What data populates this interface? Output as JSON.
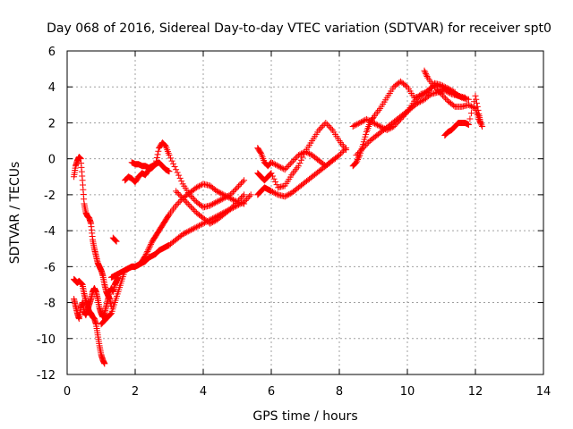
{
  "chart_data": {
    "type": "scatter",
    "title": "Day 068 of 2016, Sidereal Day-to-day VTEC variation (SDTVAR) for receiver spt0",
    "xlabel": "GPS time / hours",
    "ylabel": "SDTVAR / TECUs",
    "xlim": [
      0,
      14
    ],
    "ylim": [
      -12,
      6
    ],
    "xticks": [
      0,
      2,
      4,
      6,
      8,
      10,
      12,
      14
    ],
    "yticks": [
      -12,
      -10,
      -8,
      -6,
      -4,
      -2,
      0,
      2,
      4,
      6
    ],
    "grid": true,
    "legend": "none",
    "marker": "plus",
    "color": "#ff0000",
    "series": [
      {
        "x": [
          0.2,
          0.25,
          0.3,
          0.35,
          0.4,
          0.45,
          0.5,
          0.55,
          0.6,
          0.65,
          0.7,
          0.75,
          0.8,
          0.85,
          0.9,
          0.95,
          1.0,
          1.05,
          1.1,
          1.15,
          1.2,
          1.25,
          1.3
        ],
        "y": [
          -1.0,
          -0.4,
          -0.1,
          0.1,
          0.0,
          -1.2,
          -2.5,
          -3.0,
          -3.2,
          -3.3,
          -3.6,
          -4.5,
          -5.0,
          -5.4,
          -5.8,
          -6.0,
          -6.2,
          -6.5,
          -7.0,
          -7.4,
          -7.6,
          -7.8,
          -8.2
        ]
      },
      {
        "x": [
          0.2,
          0.25,
          0.3,
          0.35,
          0.4,
          0.45,
          0.5,
          0.55,
          0.6,
          0.65,
          0.7,
          0.75,
          0.8,
          0.85,
          0.9,
          0.95,
          1.0,
          1.05,
          1.1
        ],
        "y": [
          -6.7,
          -6.8,
          -6.9,
          -6.8,
          -6.9,
          -7.0,
          -7.5,
          -7.9,
          -8.2,
          -8.5,
          -8.6,
          -8.8,
          -8.9,
          -9.2,
          -9.8,
          -10.4,
          -10.9,
          -11.2,
          -11.4
        ]
      },
      {
        "x": [
          0.2,
          0.25,
          0.3,
          0.35,
          0.4,
          0.45,
          0.5,
          0.55,
          0.6,
          0.65,
          0.7,
          0.75,
          0.8,
          0.85,
          0.9,
          0.95,
          1.0,
          1.05,
          1.1,
          1.15,
          1.2,
          1.25,
          1.3,
          1.35,
          1.4,
          1.45,
          1.5
        ],
        "y": [
          -7.8,
          -8.2,
          -8.6,
          -8.9,
          -8.3,
          -8.0,
          -8.5,
          -8.7,
          -8.4,
          -8.1,
          -7.8,
          -7.4,
          -7.2,
          -7.4,
          -7.8,
          -8.3,
          -8.6,
          -8.8,
          -8.6,
          -8.2,
          -7.8,
          -7.4,
          -7.2,
          -7.4,
          -7.0,
          -6.8,
          -6.6
        ]
      },
      {
        "x": [
          1.0,
          1.1,
          1.2,
          1.3,
          1.4,
          1.5,
          1.6,
          1.7,
          1.8,
          1.9,
          2.0,
          2.1,
          2.2,
          2.3,
          2.4,
          2.5,
          2.6,
          2.7,
          2.8,
          2.9,
          3.0,
          3.2,
          3.4,
          3.6,
          3.8,
          4.0,
          4.2,
          4.4,
          4.6,
          4.8,
          5.0,
          5.2
        ],
        "y": [
          -9.2,
          -9.0,
          -8.8,
          -8.6,
          -8.0,
          -7.4,
          -6.8,
          -6.2,
          -6.1,
          -6.0,
          -6.0,
          -5.9,
          -5.7,
          -5.4,
          -5.0,
          -4.6,
          -4.3,
          -4.0,
          -3.7,
          -3.4,
          -3.1,
          -2.6,
          -2.2,
          -1.9,
          -1.6,
          -1.4,
          -1.5,
          -1.8,
          -2.0,
          -2.2,
          -2.4,
          -2.5
        ]
      },
      {
        "x": [
          1.3,
          1.4,
          1.5,
          1.6,
          1.7,
          1.8,
          1.9,
          2.0,
          2.1,
          2.2,
          2.3,
          2.4,
          2.5,
          2.6,
          2.7,
          2.8,
          2.9,
          3.0,
          3.2,
          3.4,
          3.6,
          3.8,
          4.0,
          4.2,
          4.4,
          4.6,
          4.8,
          5.0,
          5.2,
          5.4
        ],
        "y": [
          -6.6,
          -6.5,
          -6.4,
          -6.3,
          -6.2,
          -6.1,
          -6.0,
          -6.0,
          -5.9,
          -5.8,
          -5.7,
          -5.5,
          -5.4,
          -5.3,
          -5.1,
          -5.0,
          -4.9,
          -4.8,
          -4.5,
          -4.2,
          -4.0,
          -3.8,
          -3.6,
          -3.4,
          -3.2,
          -3.0,
          -2.8,
          -2.6,
          -2.4,
          -2.0
        ]
      },
      {
        "x": [
          1.7,
          1.8,
          1.9,
          2.0,
          2.1,
          2.2,
          2.3,
          2.4,
          2.5,
          2.6,
          2.7,
          2.8,
          2.9,
          3.0
        ],
        "y": [
          -1.2,
          -1.0,
          -1.1,
          -1.3,
          -1.0,
          -0.8,
          -0.9,
          -0.6,
          -0.5,
          -0.3,
          -0.2,
          -0.4,
          -0.6,
          -0.7
        ]
      },
      {
        "x": [
          1.9,
          2.0,
          2.1,
          2.2,
          2.3,
          2.4,
          2.5,
          2.6,
          2.7,
          2.8,
          2.9,
          3.0,
          3.2,
          3.4,
          3.6,
          3.8,
          4.0,
          4.2,
          4.4,
          4.6,
          4.8,
          5.0,
          5.2
        ],
        "y": [
          -0.2,
          -0.3,
          -0.3,
          -0.4,
          -0.4,
          -0.5,
          -0.4,
          -0.3,
          0.6,
          0.9,
          0.7,
          0.2,
          -0.6,
          -1.4,
          -2.0,
          -2.4,
          -2.7,
          -2.6,
          -2.4,
          -2.2,
          -2.0,
          -1.6,
          -1.2
        ]
      },
      {
        "x": [
          3.2,
          3.4,
          3.6,
          3.8,
          4.0,
          4.2,
          4.4,
          4.6,
          4.8,
          5.0,
          5.2
        ],
        "y": [
          -1.8,
          -2.2,
          -2.6,
          -3.0,
          -3.3,
          -3.6,
          -3.4,
          -3.1,
          -2.8,
          -2.4,
          -2.0
        ]
      },
      {
        "x": [
          5.6,
          5.7,
          5.8,
          5.9,
          6.0,
          6.2,
          6.4,
          6.6,
          6.8,
          7.0,
          7.2,
          7.4,
          7.6,
          7.8,
          8.0,
          8.2
        ],
        "y": [
          -2.0,
          -1.8,
          -1.6,
          -1.7,
          -1.8,
          -2.0,
          -2.1,
          -1.9,
          -1.6,
          -1.3,
          -1.0,
          -0.7,
          -0.4,
          -0.1,
          0.2,
          0.6
        ]
      },
      {
        "x": [
          5.6,
          5.7,
          5.8,
          5.9,
          6.0,
          6.2,
          6.4,
          6.6,
          6.8,
          7.0,
          7.2,
          7.4,
          7.6,
          7.8,
          8.0,
          8.2
        ],
        "y": [
          -0.8,
          -1.0,
          -1.2,
          -1.0,
          -0.8,
          -1.6,
          -1.5,
          -0.9,
          -0.4,
          0.4,
          1.0,
          1.6,
          2.0,
          1.6,
          1.0,
          0.5
        ]
      },
      {
        "x": [
          5.6,
          5.7,
          5.8,
          5.9,
          6.0,
          6.2,
          6.4,
          6.6,
          6.8,
          7.0,
          7.2,
          7.4,
          7.6,
          7.8,
          8.0
        ],
        "y": [
          0.6,
          0.3,
          -0.2,
          -0.4,
          -0.2,
          -0.4,
          -0.6,
          -0.2,
          0.2,
          0.4,
          0.2,
          -0.1,
          -0.4,
          -0.1,
          0.2
        ]
      },
      {
        "x": [
          8.4,
          8.5,
          8.6,
          8.7,
          8.8,
          8.9,
          9.0,
          9.2,
          9.4,
          9.6,
          9.8,
          10.0,
          10.2,
          10.4,
          10.6,
          10.8,
          11.0,
          11.2,
          11.4
        ],
        "y": [
          -0.4,
          -0.2,
          0.2,
          0.8,
          1.5,
          2.0,
          2.3,
          2.8,
          3.4,
          4.0,
          4.3,
          4.0,
          3.4,
          3.5,
          3.8,
          4.1,
          4.0,
          3.9,
          3.7
        ]
      },
      {
        "x": [
          8.4,
          8.6,
          8.8,
          9.0,
          9.2,
          9.4,
          9.6,
          9.8,
          10.0,
          10.2,
          10.4,
          10.6,
          10.8,
          11.0,
          11.2,
          11.4,
          11.6,
          11.8
        ],
        "y": [
          1.8,
          2.0,
          2.2,
          2.0,
          1.8,
          1.6,
          1.8,
          2.2,
          2.6,
          3.2,
          3.6,
          3.7,
          4.2,
          4.1,
          3.9,
          3.6,
          3.4,
          3.3
        ]
      },
      {
        "x": [
          8.5,
          8.7,
          8.9,
          9.1,
          9.3,
          9.5,
          9.7,
          9.9,
          10.1,
          10.3,
          10.5,
          10.7,
          10.9,
          11.1,
          11.3,
          11.5,
          11.7
        ],
        "y": [
          0.2,
          0.6,
          1.0,
          1.3,
          1.6,
          1.9,
          2.2,
          2.5,
          2.8,
          3.1,
          3.3,
          3.6,
          3.7,
          3.8,
          3.6,
          3.5,
          3.4
        ]
      },
      {
        "x": [
          10.5,
          10.6,
          10.8,
          11.0,
          11.2,
          11.4,
          11.6,
          11.8,
          12.0,
          12.1,
          12.2
        ],
        "y": [
          4.9,
          4.5,
          4.0,
          3.6,
          3.2,
          2.9,
          2.9,
          3.0,
          2.8,
          2.2,
          1.8
        ]
      },
      {
        "x": [
          11.1,
          11.2,
          11.3,
          11.4,
          11.5,
          11.6,
          11.7,
          11.8,
          12.0,
          12.1,
          12.15
        ],
        "y": [
          1.3,
          1.5,
          1.6,
          1.8,
          2.0,
          2.0,
          2.0,
          1.9,
          3.5,
          2.5,
          2.0
        ]
      },
      {
        "x": [
          1.35,
          1.45
        ],
        "y": [
          -4.4,
          -4.6
        ]
      }
    ]
  }
}
